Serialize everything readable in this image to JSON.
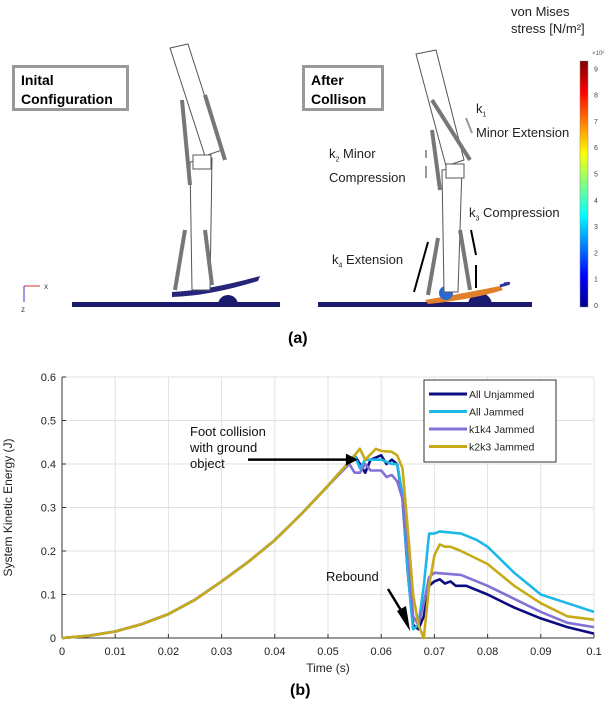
{
  "panel_a": {
    "caption": "(a)",
    "initial_label": "Inital Configuration",
    "after_label": "After Collison",
    "annotations": [
      {
        "sub": "1",
        "text": "Minor Extension",
        "prefix": "k"
      },
      {
        "sub": "2",
        "text": "Minor Compression",
        "prefix": "k"
      },
      {
        "sub": "3",
        "text": "Compression",
        "prefix": "k"
      },
      {
        "sub": "4",
        "text": "Extension",
        "prefix": "k"
      }
    ],
    "axis_x": "x",
    "axis_z": "z",
    "colorbar": {
      "title_line1": "von Mises",
      "title_line2": "stress [N/m²]",
      "multiplier": "×10⁶",
      "ticks": [
        "0",
        "1",
        "2",
        "3",
        "4",
        "5",
        "6",
        "7",
        "8",
        "9"
      ]
    }
  },
  "panel_b": {
    "caption": "(b)"
  },
  "chart_data": {
    "type": "line",
    "title": "",
    "xlabel": "Time (s)",
    "ylabel": "System Kinetic Energy (J)",
    "xlim": [
      0,
      0.1
    ],
    "ylim": [
      0,
      0.6
    ],
    "xticks": [
      "0",
      "0.01",
      "0.02",
      "0.03",
      "0.04",
      "0.05",
      "0.06",
      "0.07",
      "0.08",
      "0.09",
      "0.1"
    ],
    "yticks": [
      "0",
      "0.1",
      "0.2",
      "0.3",
      "0.4",
      "0.5",
      "0.6"
    ],
    "grid": true,
    "legend_position": "top-right",
    "annotations": [
      {
        "text_lines": [
          "Foot collision",
          "with ground",
          "object"
        ],
        "x": 0.056,
        "y": 0.435
      },
      {
        "text_lines": [
          "Rebound"
        ],
        "x": 0.066,
        "y": 0.02
      }
    ],
    "series": [
      {
        "name": "All Unjammed",
        "color": "#0c0c80",
        "x": [
          0,
          0.005,
          0.01,
          0.015,
          0.02,
          0.025,
          0.03,
          0.035,
          0.04,
          0.045,
          0.05,
          0.054,
          0.055,
          0.056,
          0.057,
          0.058,
          0.06,
          0.061,
          0.062,
          0.063,
          0.064,
          0.065,
          0.066,
          0.067,
          0.068,
          0.069,
          0.07,
          0.071,
          0.072,
          0.073,
          0.074,
          0.076,
          0.08,
          0.085,
          0.09,
          0.095,
          0.1
        ],
        "y": [
          0,
          0.005,
          0.015,
          0.032,
          0.055,
          0.088,
          0.13,
          0.175,
          0.225,
          0.285,
          0.35,
          0.405,
          0.42,
          0.4,
          0.38,
          0.41,
          0.42,
          0.4,
          0.41,
          0.4,
          0.32,
          0.15,
          0.03,
          0.02,
          0.05,
          0.12,
          0.13,
          0.135,
          0.125,
          0.13,
          0.12,
          0.12,
          0.1,
          0.07,
          0.045,
          0.025,
          0.01
        ]
      },
      {
        "name": "All Jammed",
        "color": "#1cb8e8",
        "x": [
          0,
          0.005,
          0.01,
          0.015,
          0.02,
          0.025,
          0.03,
          0.035,
          0.04,
          0.045,
          0.05,
          0.054,
          0.055,
          0.056,
          0.057,
          0.058,
          0.06,
          0.062,
          0.063,
          0.064,
          0.065,
          0.066,
          0.067,
          0.068,
          0.069,
          0.07,
          0.071,
          0.075,
          0.078,
          0.08,
          0.085,
          0.09,
          0.095,
          0.1
        ],
        "y": [
          0,
          0.005,
          0.015,
          0.032,
          0.055,
          0.088,
          0.13,
          0.175,
          0.225,
          0.285,
          0.35,
          0.405,
          0.42,
          0.39,
          0.41,
          0.41,
          0.41,
          0.4,
          0.4,
          0.33,
          0.15,
          0.02,
          0.03,
          0.12,
          0.24,
          0.24,
          0.245,
          0.24,
          0.225,
          0.21,
          0.15,
          0.1,
          0.08,
          0.06
        ]
      },
      {
        "name": "k1k4 Jammed",
        "color": "#8272d8",
        "x": [
          0,
          0.005,
          0.01,
          0.015,
          0.02,
          0.025,
          0.03,
          0.035,
          0.04,
          0.045,
          0.05,
          0.054,
          0.055,
          0.056,
          0.057,
          0.058,
          0.06,
          0.061,
          0.062,
          0.063,
          0.064,
          0.065,
          0.066,
          0.067,
          0.068,
          0.069,
          0.07,
          0.075,
          0.08,
          0.085,
          0.09,
          0.095,
          0.1
        ],
        "y": [
          0,
          0.005,
          0.015,
          0.032,
          0.055,
          0.088,
          0.13,
          0.175,
          0.225,
          0.285,
          0.35,
          0.4,
          0.38,
          0.38,
          0.4,
          0.385,
          0.385,
          0.37,
          0.375,
          0.36,
          0.32,
          0.2,
          0.05,
          0.03,
          0.08,
          0.14,
          0.15,
          0.145,
          0.12,
          0.09,
          0.06,
          0.035,
          0.025
        ]
      },
      {
        "name": "k2k3 Jammed",
        "color": "#c8aa18",
        "x": [
          0,
          0.005,
          0.01,
          0.015,
          0.02,
          0.025,
          0.03,
          0.035,
          0.04,
          0.045,
          0.05,
          0.054,
          0.056,
          0.057,
          0.059,
          0.06,
          0.062,
          0.063,
          0.064,
          0.065,
          0.066,
          0.067,
          0.068,
          0.069,
          0.07,
          0.071,
          0.072,
          0.073,
          0.075,
          0.08,
          0.085,
          0.09,
          0.095,
          0.1
        ],
        "y": [
          0,
          0.005,
          0.015,
          0.032,
          0.055,
          0.088,
          0.13,
          0.175,
          0.225,
          0.285,
          0.35,
          0.405,
          0.435,
          0.41,
          0.435,
          0.43,
          0.428,
          0.42,
          0.39,
          0.25,
          0.1,
          0.03,
          0.0,
          0.12,
          0.19,
          0.215,
          0.21,
          0.21,
          0.2,
          0.17,
          0.12,
          0.08,
          0.05,
          0.042
        ]
      }
    ]
  }
}
